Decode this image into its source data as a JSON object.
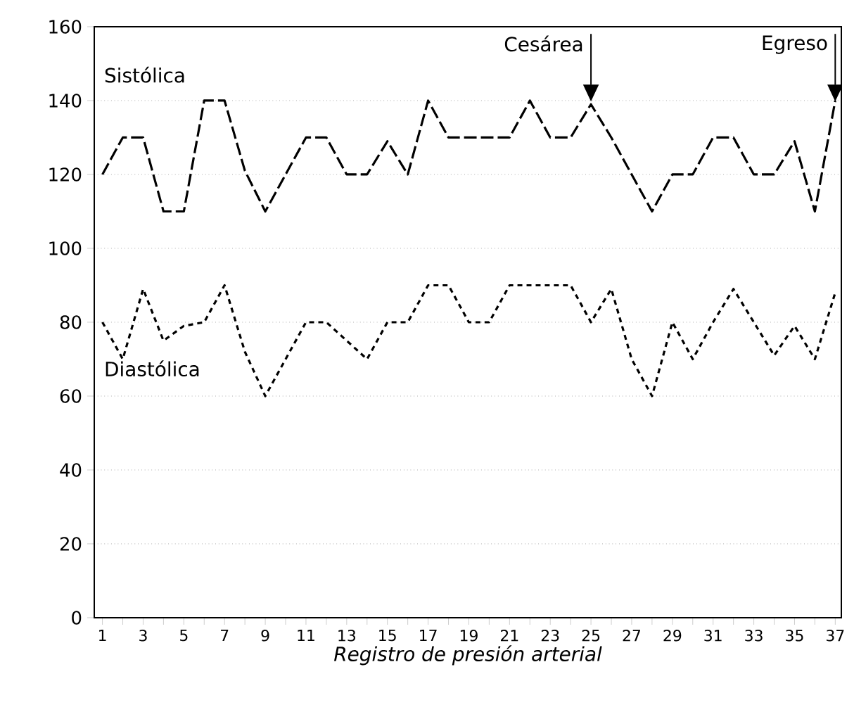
{
  "chart_data": {
    "type": "line",
    "xlabel": "Registro de presión arterial",
    "x": [
      1,
      2,
      3,
      4,
      5,
      6,
      7,
      8,
      9,
      10,
      11,
      12,
      13,
      14,
      15,
      16,
      17,
      18,
      19,
      20,
      21,
      22,
      23,
      24,
      25,
      26,
      27,
      28,
      29,
      30,
      31,
      32,
      33,
      34,
      35,
      36,
      37
    ],
    "xlim": [
      0.6,
      37.3
    ],
    "ylim": [
      0,
      160
    ],
    "xticks": [
      1,
      {
        "value": 2,
        "label": null
      },
      3,
      {
        "value": 4,
        "label": null
      },
      5,
      {
        "value": 6,
        "label": null
      },
      7,
      {
        "value": 8,
        "label": null
      },
      9,
      {
        "value": 10,
        "label": null
      },
      11,
      {
        "value": 12,
        "label": null
      },
      13,
      {
        "value": 14,
        "label": null
      },
      15,
      {
        "value": 16,
        "label": null
      },
      17,
      {
        "value": 18,
        "label": null
      },
      19,
      {
        "value": 20,
        "label": null
      },
      21,
      {
        "value": 22,
        "label": null
      },
      23,
      {
        "value": 24,
        "label": null
      },
      25,
      {
        "value": 26,
        "label": null
      },
      27,
      {
        "value": 28,
        "label": null
      },
      29,
      {
        "value": 30,
        "label": null
      },
      31,
      {
        "value": 32,
        "label": null
      },
      33,
      {
        "value": 34,
        "label": null
      },
      35,
      {
        "value": 36,
        "label": null
      },
      37
    ],
    "yticks": [
      0,
      20,
      40,
      60,
      80,
      100,
      120,
      140,
      160
    ],
    "grid": "y",
    "marker": "none",
    "series": [
      {
        "name": "Sistólica",
        "color": "#000000",
        "line_style": "dashed",
        "values": [
          120,
          130,
          130,
          110,
          110,
          140,
          140,
          121,
          110,
          120,
          130,
          130,
          120,
          120,
          129,
          120,
          140,
          130,
          130,
          130,
          130,
          140,
          130,
          130,
          139,
          130,
          120,
          110,
          120,
          120,
          130,
          130,
          120,
          120,
          129,
          110,
          140
        ]
      },
      {
        "name": "Diastólica",
        "color": "#000000",
        "line_style": "dotted",
        "values": [
          80,
          70,
          89,
          75,
          79,
          80,
          90,
          72,
          60,
          70,
          80,
          80,
          75,
          70,
          80,
          80,
          90,
          90,
          80,
          80,
          90,
          90,
          90,
          90,
          80,
          89,
          70,
          60,
          80,
          70,
          80,
          89,
          80,
          71,
          79,
          70,
          88
        ]
      }
    ],
    "annotations": [
      {
        "text": "Cesárea",
        "x": 25,
        "y": 139
      },
      {
        "text": "Egreso",
        "x": 37,
        "y": 139
      }
    ]
  }
}
